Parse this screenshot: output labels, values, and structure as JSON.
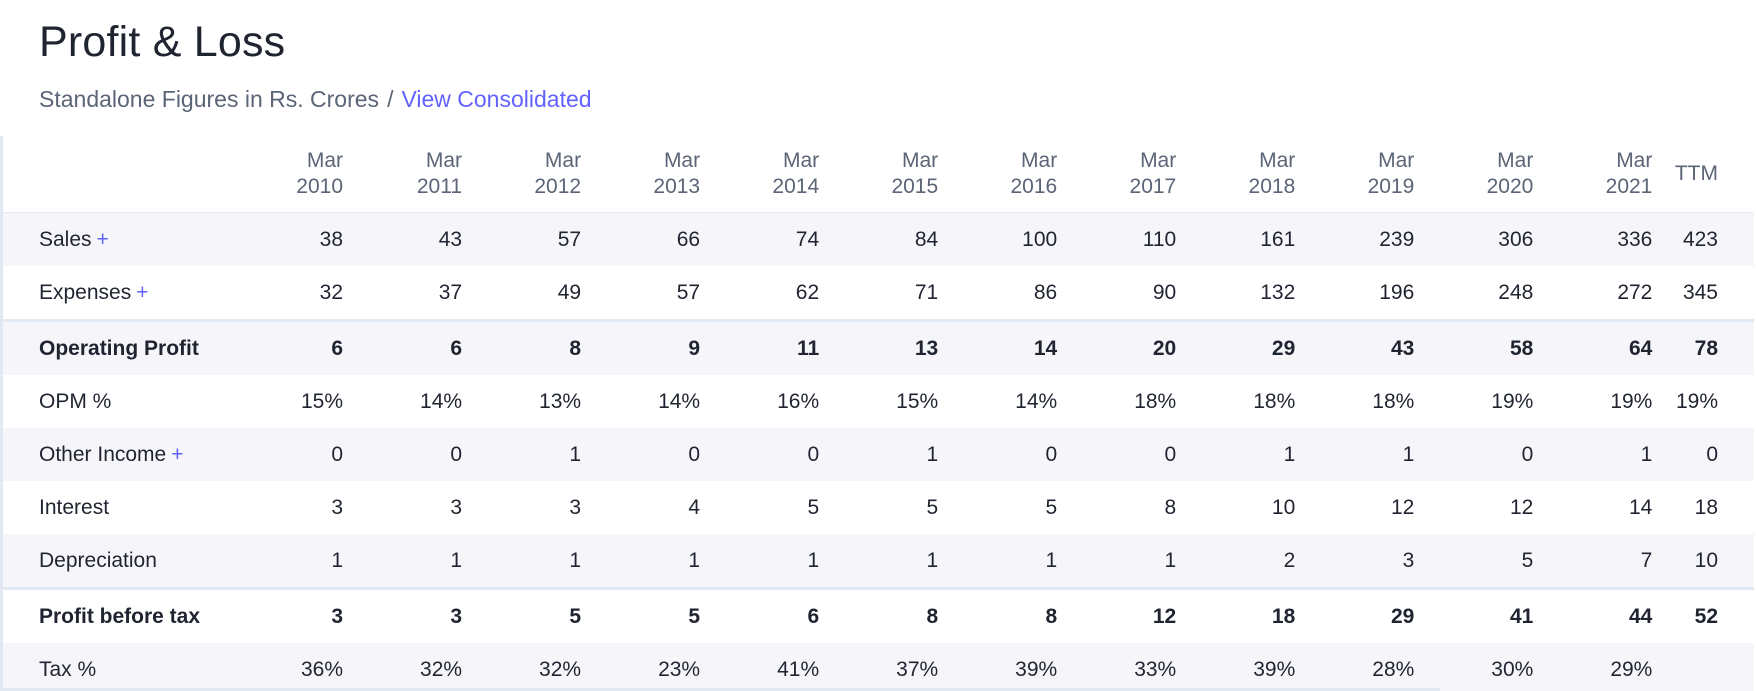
{
  "header": {
    "title": "Profit & Loss",
    "subtitle": "Standalone Figures in Rs. Crores",
    "separator": "/",
    "view_link": "View Consolidated"
  },
  "table": {
    "columns": [
      {
        "month": "Mar",
        "year": "2010"
      },
      {
        "month": "Mar",
        "year": "2011"
      },
      {
        "month": "Mar",
        "year": "2012"
      },
      {
        "month": "Mar",
        "year": "2013"
      },
      {
        "month": "Mar",
        "year": "2014"
      },
      {
        "month": "Mar",
        "year": "2015"
      },
      {
        "month": "Mar",
        "year": "2016"
      },
      {
        "month": "Mar",
        "year": "2017"
      },
      {
        "month": "Mar",
        "year": "2018"
      },
      {
        "month": "Mar",
        "year": "2019"
      },
      {
        "month": "Mar",
        "year": "2020"
      },
      {
        "month": "Mar",
        "year": "2021"
      }
    ],
    "ttm_label": "TTM",
    "rows": [
      {
        "label": "Sales",
        "expandable": "+",
        "values": [
          "38",
          "43",
          "57",
          "66",
          "74",
          "84",
          "100",
          "110",
          "161",
          "239",
          "306",
          "336"
        ],
        "ttm": "423"
      },
      {
        "label": "Expenses",
        "expandable": "+",
        "values": [
          "32",
          "37",
          "49",
          "57",
          "62",
          "71",
          "86",
          "90",
          "132",
          "196",
          "248",
          "272"
        ],
        "ttm": "345"
      },
      {
        "label": "Operating Profit",
        "values": [
          "6",
          "6",
          "8",
          "9",
          "11",
          "13",
          "14",
          "20",
          "29",
          "43",
          "58",
          "64"
        ],
        "ttm": "78"
      },
      {
        "label": "OPM %",
        "values": [
          "15%",
          "14%",
          "13%",
          "14%",
          "16%",
          "15%",
          "14%",
          "18%",
          "18%",
          "18%",
          "19%",
          "19%"
        ],
        "ttm": "19%"
      },
      {
        "label": "Other Income",
        "expandable": "+",
        "values": [
          "0",
          "0",
          "1",
          "0",
          "0",
          "1",
          "0",
          "0",
          "1",
          "1",
          "0",
          "1"
        ],
        "ttm": "0"
      },
      {
        "label": "Interest",
        "values": [
          "3",
          "3",
          "3",
          "4",
          "5",
          "5",
          "5",
          "8",
          "10",
          "12",
          "12",
          "14"
        ],
        "ttm": "18"
      },
      {
        "label": "Depreciation",
        "values": [
          "1",
          "1",
          "1",
          "1",
          "1",
          "1",
          "1",
          "1",
          "2",
          "3",
          "5",
          "7"
        ],
        "ttm": "10"
      },
      {
        "label": "Profit before tax",
        "values": [
          "3",
          "3",
          "5",
          "5",
          "6",
          "8",
          "8",
          "12",
          "18",
          "29",
          "41",
          "44"
        ],
        "ttm": "52"
      },
      {
        "label": "Tax %",
        "values": [
          "36%",
          "32%",
          "32%",
          "23%",
          "41%",
          "37%",
          "39%",
          "33%",
          "39%",
          "28%",
          "30%",
          "29%"
        ],
        "ttm": ""
      }
    ]
  },
  "colors": {
    "accent": "#6262ff",
    "title_text": "#1f2430",
    "muted_text": "#5b6577",
    "row_shade": "#f6f6fa",
    "divider": "#e3e9f2"
  }
}
